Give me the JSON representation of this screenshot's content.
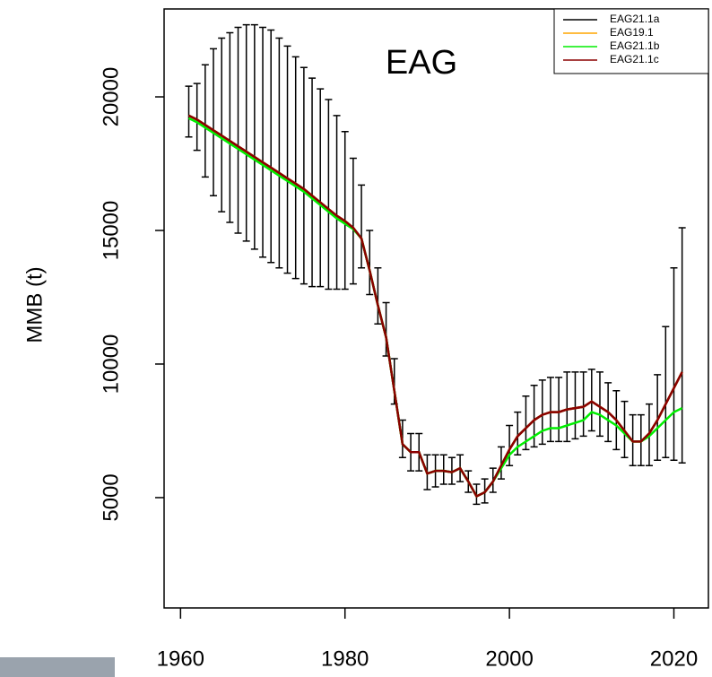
{
  "chart_data": {
    "type": "line",
    "annotation": "EAG",
    "annotation_color": "#ff0000",
    "y_label": "MMB (t)",
    "x": [
      1961,
      1962,
      1963,
      1964,
      1965,
      1966,
      1967,
      1968,
      1969,
      1970,
      1971,
      1972,
      1973,
      1974,
      1975,
      1976,
      1977,
      1978,
      1979,
      1980,
      1981,
      1982,
      1983,
      1984,
      1985,
      1986,
      1987,
      1988,
      1989,
      1990,
      1991,
      1992,
      1993,
      1994,
      1995,
      1996,
      1997,
      1998,
      1999,
      2000,
      2001,
      2002,
      2003,
      2004,
      2005,
      2006,
      2007,
      2008,
      2009,
      2010,
      2011,
      2012,
      2013,
      2014,
      2015,
      2016,
      2017,
      2018,
      2019,
      2020,
      2021
    ],
    "xlim": [
      1958,
      2024.2
    ],
    "xticks": [
      1960,
      1980,
      2000,
      2020
    ],
    "ylim": [
      870,
      23290
    ],
    "yticks": [
      5000,
      10000,
      15000,
      20000
    ],
    "legend": "top-right",
    "series": [
      {
        "name": "EAG21.1a",
        "color": "#000000",
        "values": [
          19300,
          19150,
          18950,
          18750,
          18550,
          18350,
          18150,
          17950,
          17750,
          17550,
          17350,
          17150,
          16950,
          16750,
          16550,
          16300,
          16050,
          15800,
          15550,
          15350,
          15100,
          14700,
          13500,
          12200,
          11000,
          9000,
          7000,
          6700,
          6700,
          5900,
          6000,
          6000,
          5950,
          6100,
          5600,
          5050,
          5200,
          5600,
          6200,
          6800,
          7300,
          7600,
          7900,
          8100,
          8200,
          8200,
          8300,
          8350,
          8400,
          8600,
          8400,
          8200,
          7900,
          7500,
          7100,
          7100,
          7400,
          7900,
          8500,
          9100,
          9700
        ],
        "lower": [
          18500,
          18000,
          17000,
          16300,
          15700,
          15300,
          14900,
          14600,
          14300,
          14000,
          13800,
          13600,
          13400,
          13200,
          13000,
          12900,
          12900,
          12800,
          12800,
          12800,
          13000,
          13600,
          12600,
          11500,
          10300,
          8500,
          6500,
          6000,
          6000,
          5300,
          5400,
          5500,
          5500,
          5600,
          5200,
          4750,
          4800,
          5200,
          5700,
          6200,
          6600,
          6800,
          6900,
          7000,
          7100,
          7100,
          7100,
          7200,
          7300,
          7500,
          7300,
          7100,
          6800,
          6500,
          6200,
          6200,
          6200,
          6400,
          6500,
          6400,
          6300
        ],
        "upper": [
          20400,
          20500,
          21200,
          21800,
          22200,
          22400,
          22600,
          22700,
          22700,
          22600,
          22500,
          22200,
          21900,
          21500,
          21100,
          20700,
          20300,
          19900,
          19300,
          18700,
          17700,
          16700,
          15000,
          13600,
          12300,
          10200,
          7900,
          7400,
          7400,
          6600,
          6600,
          6600,
          6500,
          6600,
          6000,
          5500,
          5700,
          6100,
          6900,
          7700,
          8200,
          8800,
          9200,
          9400,
          9500,
          9500,
          9700,
          9700,
          9700,
          9800,
          9700,
          9300,
          9000,
          8600,
          8100,
          8100,
          8500,
          9600,
          11400,
          13600,
          15100
        ]
      },
      {
        "name": "EAG19.1",
        "color": "#ffa500",
        "values": [
          19300,
          19150,
          18950,
          18750,
          18550,
          18350,
          18150,
          17950,
          17750,
          17550,
          17350,
          17150,
          16950,
          16750,
          16550,
          16300,
          16050,
          15800,
          15550,
          15350,
          15100,
          14700,
          13500,
          12200,
          11000,
          9000,
          7000,
          6700,
          6700,
          5900,
          6000,
          6000,
          5950,
          6100,
          5600,
          5050,
          5200,
          5600,
          6200,
          6800,
          7300,
          7600,
          7900,
          8100,
          8200,
          8200,
          8300,
          8350,
          8400,
          8600,
          8400,
          8200,
          7900,
          7500,
          7100,
          7100,
          7400,
          7900,
          8500,
          9100,
          9700
        ]
      },
      {
        "name": "EAG21.1b",
        "color": "#00ee00",
        "values": [
          19200,
          19050,
          18850,
          18650,
          18450,
          18250,
          18050,
          17850,
          17650,
          17450,
          17250,
          17050,
          16850,
          16650,
          16450,
          16200,
          15950,
          15700,
          15450,
          15250,
          15050,
          14700,
          13500,
          12200,
          11000,
          9000,
          7000,
          6700,
          6700,
          5900,
          6000,
          6000,
          5950,
          6100,
          5600,
          5050,
          5200,
          5600,
          6100,
          6600,
          6900,
          7100,
          7300,
          7500,
          7600,
          7600,
          7700,
          7800,
          7900,
          8200,
          8100,
          7900,
          7700,
          7400,
          7100,
          7100,
          7300,
          7600,
          7900,
          8200,
          8350
        ]
      },
      {
        "name": "EAG21.1c",
        "color": "#8b0000",
        "values": [
          19300,
          19150,
          18950,
          18750,
          18550,
          18350,
          18150,
          17950,
          17750,
          17550,
          17350,
          17150,
          16950,
          16750,
          16550,
          16300,
          16050,
          15800,
          15550,
          15350,
          15100,
          14700,
          13500,
          12200,
          11000,
          9000,
          7000,
          6700,
          6700,
          5900,
          6000,
          6000,
          5950,
          6100,
          5600,
          5050,
          5200,
          5600,
          6200,
          6800,
          7300,
          7600,
          7900,
          8100,
          8200,
          8200,
          8300,
          8350,
          8400,
          8600,
          8400,
          8200,
          7900,
          7500,
          7100,
          7100,
          7400,
          7900,
          8500,
          9100,
          9700
        ]
      }
    ]
  }
}
